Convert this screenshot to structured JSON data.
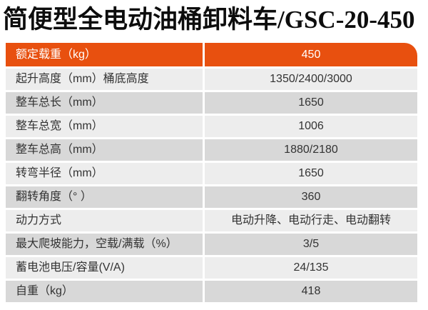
{
  "title": "简便型全电动油桶卸料车/GSC-20-450",
  "colors": {
    "accent_orange": "#e8500f",
    "row_light": "#ededed",
    "row_dark": "#d8d8d8",
    "header_text": "#ffffff",
    "body_text": "#333333",
    "title_text": "#0d0d0d"
  },
  "spec_table": {
    "header": {
      "label": "额定载重（kg）",
      "value": "450"
    },
    "rows": [
      {
        "label": "起升高度（mm）桶底高度",
        "value": "1350/2400/3000"
      },
      {
        "label": "整车总长（mm）",
        "value": "1650"
      },
      {
        "label": "整车总宽（mm）",
        "value": "1006"
      },
      {
        "label": "整车总高（mm）",
        "value": "1880/2180"
      },
      {
        "label": "转弯半径（mm）",
        "value": "1650"
      },
      {
        "label": "翻转角度（° ）",
        "value": "360"
      },
      {
        "label": "动力方式",
        "value": "电动升降、电动行走、电动翻转"
      },
      {
        "label": "最大爬坡能力，空载/满载（%）",
        "value": "3/5"
      },
      {
        "label": "蓄电池电压/容量(V/A)",
        "value": "24/135"
      },
      {
        "label": "自重（kg）",
        "value": "418"
      }
    ]
  }
}
